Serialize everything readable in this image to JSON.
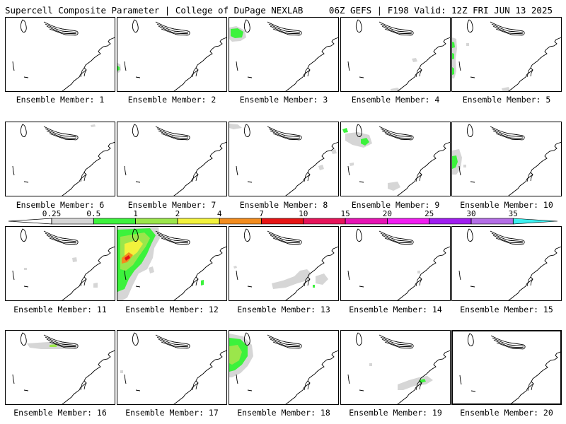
{
  "header": {
    "left_title": "Supercell Composite Parameter | College of DuPage NEXLAB",
    "right_title": "06Z GEFS | F198 Valid: 12Z FRI JUN 13 2025"
  },
  "legend": {
    "ticks": [
      "0.25",
      "0.5",
      "1",
      "2",
      "4",
      "7",
      "10",
      "15",
      "20",
      "25",
      "30",
      "35"
    ],
    "colors": [
      "#d6d6d6",
      "#3cf23c",
      "#9be64b",
      "#f2f23c",
      "#f28c1e",
      "#e61414",
      "#e6145a",
      "#e614b4",
      "#f01ef0",
      "#a01ef0",
      "#b46ee6",
      "#3cf0f0"
    ]
  },
  "panels": [
    {
      "label": "Ensemble Member: 1"
    },
    {
      "label": "Ensemble Member: 2"
    },
    {
      "label": "Ensemble Member: 3"
    },
    {
      "label": "Ensemble Member: 4"
    },
    {
      "label": "Ensemble Member: 5"
    },
    {
      "label": "Ensemble Member: 6"
    },
    {
      "label": "Ensemble Member: 7"
    },
    {
      "label": "Ensemble Member: 8"
    },
    {
      "label": "Ensemble Member: 9"
    },
    {
      "label": "Ensemble Member: 10"
    },
    {
      "label": "Ensemble Member: 11"
    },
    {
      "label": "Ensemble Member: 12"
    },
    {
      "label": "Ensemble Member: 13"
    },
    {
      "label": "Ensemble Member: 14"
    },
    {
      "label": "Ensemble Member: 15"
    },
    {
      "label": "Ensemble Member: 16"
    },
    {
      "label": "Ensemble Member: 17"
    },
    {
      "label": "Ensemble Member: 18"
    },
    {
      "label": "Ensemble Member: 19"
    },
    {
      "label": "Ensemble Member: 20"
    }
  ]
}
